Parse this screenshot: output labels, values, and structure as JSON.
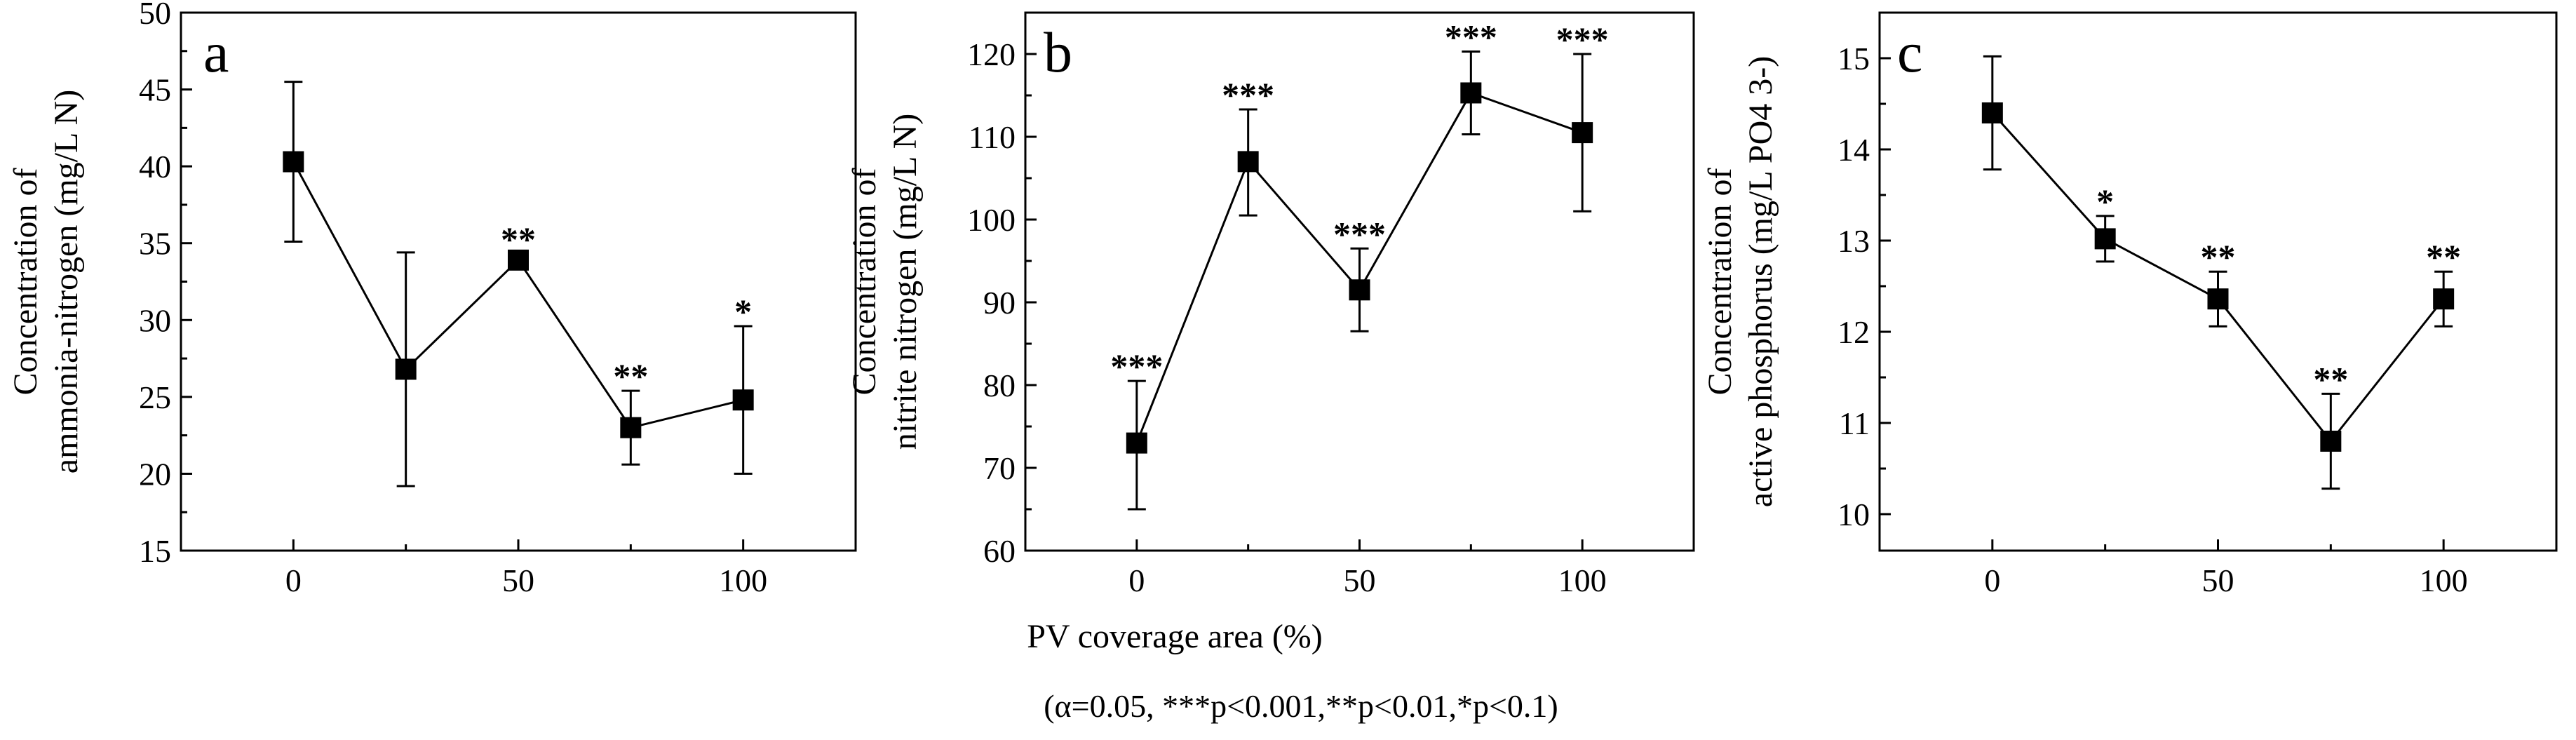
{
  "figure": {
    "xlabel": "PV coverage area (%)",
    "footnote": "(α=0.05, ***p<0.001,**p<0.01,*p<0.1)"
  },
  "chart_data": [
    {
      "type": "line",
      "panel_label": "a",
      "ylabel_lines": [
        "Concentration of",
        "ammonia-nitrogen (mg/L N)"
      ],
      "x": [
        0,
        25,
        50,
        75,
        100
      ],
      "xlim": [
        -25,
        125
      ],
      "xticks": [
        0,
        50,
        100
      ],
      "xtick_labels": [
        "0",
        "50",
        "100"
      ],
      "ylim": [
        15,
        50
      ],
      "yticks": [
        15,
        20,
        25,
        30,
        35,
        40,
        45,
        50
      ],
      "ytick_labels": [
        "15",
        "20",
        "25",
        "30",
        "35",
        "40",
        "45",
        "50"
      ],
      "values": [
        40.3,
        26.8,
        33.9,
        23.0,
        24.8
      ],
      "err_low": [
        5.2,
        7.6,
        0.4,
        2.4,
        4.8
      ],
      "err_high": [
        5.2,
        7.6,
        0.4,
        2.4,
        4.8
      ],
      "annotations": [
        "",
        "",
        "**",
        "**",
        "*"
      ]
    },
    {
      "type": "line",
      "panel_label": "b",
      "ylabel_lines": [
        "Concentration of",
        "nitrite nitrogen (mg/L N)"
      ],
      "x": [
        0,
        25,
        50,
        75,
        100
      ],
      "xlim": [
        -25,
        125
      ],
      "xticks": [
        0,
        50,
        100
      ],
      "xtick_labels": [
        "0",
        "50",
        "100"
      ],
      "ylim": [
        60,
        125
      ],
      "yticks": [
        60,
        70,
        80,
        90,
        100,
        110,
        120
      ],
      "ytick_labels": [
        "60",
        "70",
        "80",
        "90",
        "100",
        "110",
        "120"
      ],
      "values": [
        73.0,
        107.0,
        91.5,
        115.3,
        110.5
      ],
      "err_low": [
        8.0,
        6.5,
        5.0,
        5.0,
        9.5
      ],
      "err_high": [
        7.5,
        6.3,
        5.0,
        5.0,
        9.5
      ],
      "annotations": [
        "***",
        "***",
        "***",
        "***",
        "***"
      ]
    },
    {
      "type": "line",
      "panel_label": "c",
      "ylabel_lines": [
        "Concentration of",
        "active phosphorus (mg/L PO4 3-)"
      ],
      "x": [
        0,
        25,
        50,
        75,
        100
      ],
      "xlim": [
        -25,
        125
      ],
      "xticks": [
        0,
        50,
        100
      ],
      "xtick_labels": [
        "0",
        "50",
        "100"
      ],
      "ylim": [
        9.6,
        15.5
      ],
      "yticks": [
        10,
        11,
        12,
        13,
        14,
        15
      ],
      "ytick_labels": [
        "10",
        "11",
        "12",
        "13",
        "14",
        "15"
      ],
      "values": [
        14.4,
        13.02,
        12.36,
        10.8,
        12.36
      ],
      "err_low": [
        0.62,
        0.25,
        0.3,
        0.52,
        0.3
      ],
      "err_high": [
        0.62,
        0.25,
        0.3,
        0.52,
        0.3
      ],
      "annotations": [
        "",
        "*",
        "**",
        "**",
        "**"
      ]
    }
  ]
}
